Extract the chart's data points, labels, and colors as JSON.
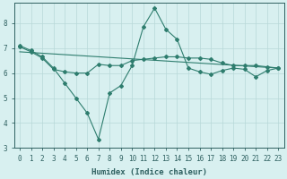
{
  "line1_x": [
    0,
    1,
    2,
    3,
    4,
    5,
    6,
    7,
    8,
    9,
    10,
    11,
    12,
    13,
    14,
    15,
    16,
    17,
    18,
    19,
    20,
    21,
    22,
    23
  ],
  "line1_y": [
    7.1,
    6.9,
    6.65,
    6.2,
    5.6,
    5.0,
    4.4,
    3.35,
    5.2,
    5.5,
    6.3,
    7.85,
    8.6,
    7.75,
    7.35,
    6.2,
    6.05,
    5.95,
    6.1,
    6.2,
    6.15,
    5.85,
    6.1,
    6.2
  ],
  "line2_x": [
    0,
    1,
    2,
    3,
    4,
    5,
    6,
    7,
    8,
    9,
    10,
    11,
    12,
    13,
    14,
    15,
    16,
    17,
    18,
    19,
    20,
    21,
    22,
    23
  ],
  "line2_y": [
    7.05,
    6.85,
    6.6,
    6.15,
    6.05,
    6.0,
    6.0,
    6.35,
    6.3,
    6.3,
    6.5,
    6.55,
    6.6,
    6.65,
    6.65,
    6.6,
    6.6,
    6.55,
    6.4,
    6.3,
    6.3,
    6.3,
    6.25,
    6.2
  ],
  "line3_x": [
    0,
    23
  ],
  "line3_y": [
    6.85,
    6.2
  ],
  "line_color": "#2e7d6e",
  "bg_color": "#d8f0f0",
  "grid_color": "#b8d8d8",
  "xlabel": "Humidex (Indice chaleur)",
  "xlim": [
    -0.5,
    23.5
  ],
  "ylim": [
    3.0,
    8.8
  ],
  "yticks": [
    3,
    4,
    5,
    6,
    7,
    8
  ],
  "xticks": [
    0,
    1,
    2,
    3,
    4,
    5,
    6,
    7,
    8,
    9,
    10,
    11,
    12,
    13,
    14,
    15,
    16,
    17,
    18,
    19,
    20,
    21,
    22,
    23
  ],
  "xtick_labels": [
    "0",
    "1",
    "2",
    "3",
    "4",
    "5",
    "6",
    "7",
    "8",
    "9",
    "10",
    "11",
    "12",
    "13",
    "14",
    "15",
    "16",
    "17",
    "18",
    "19",
    "20",
    "21",
    "22",
    "23"
  ],
  "spine_color": "#2e6060",
  "label_fontsize": 6.5,
  "tick_fontsize": 5.5,
  "marker_size": 2.0,
  "line_width": 0.8
}
